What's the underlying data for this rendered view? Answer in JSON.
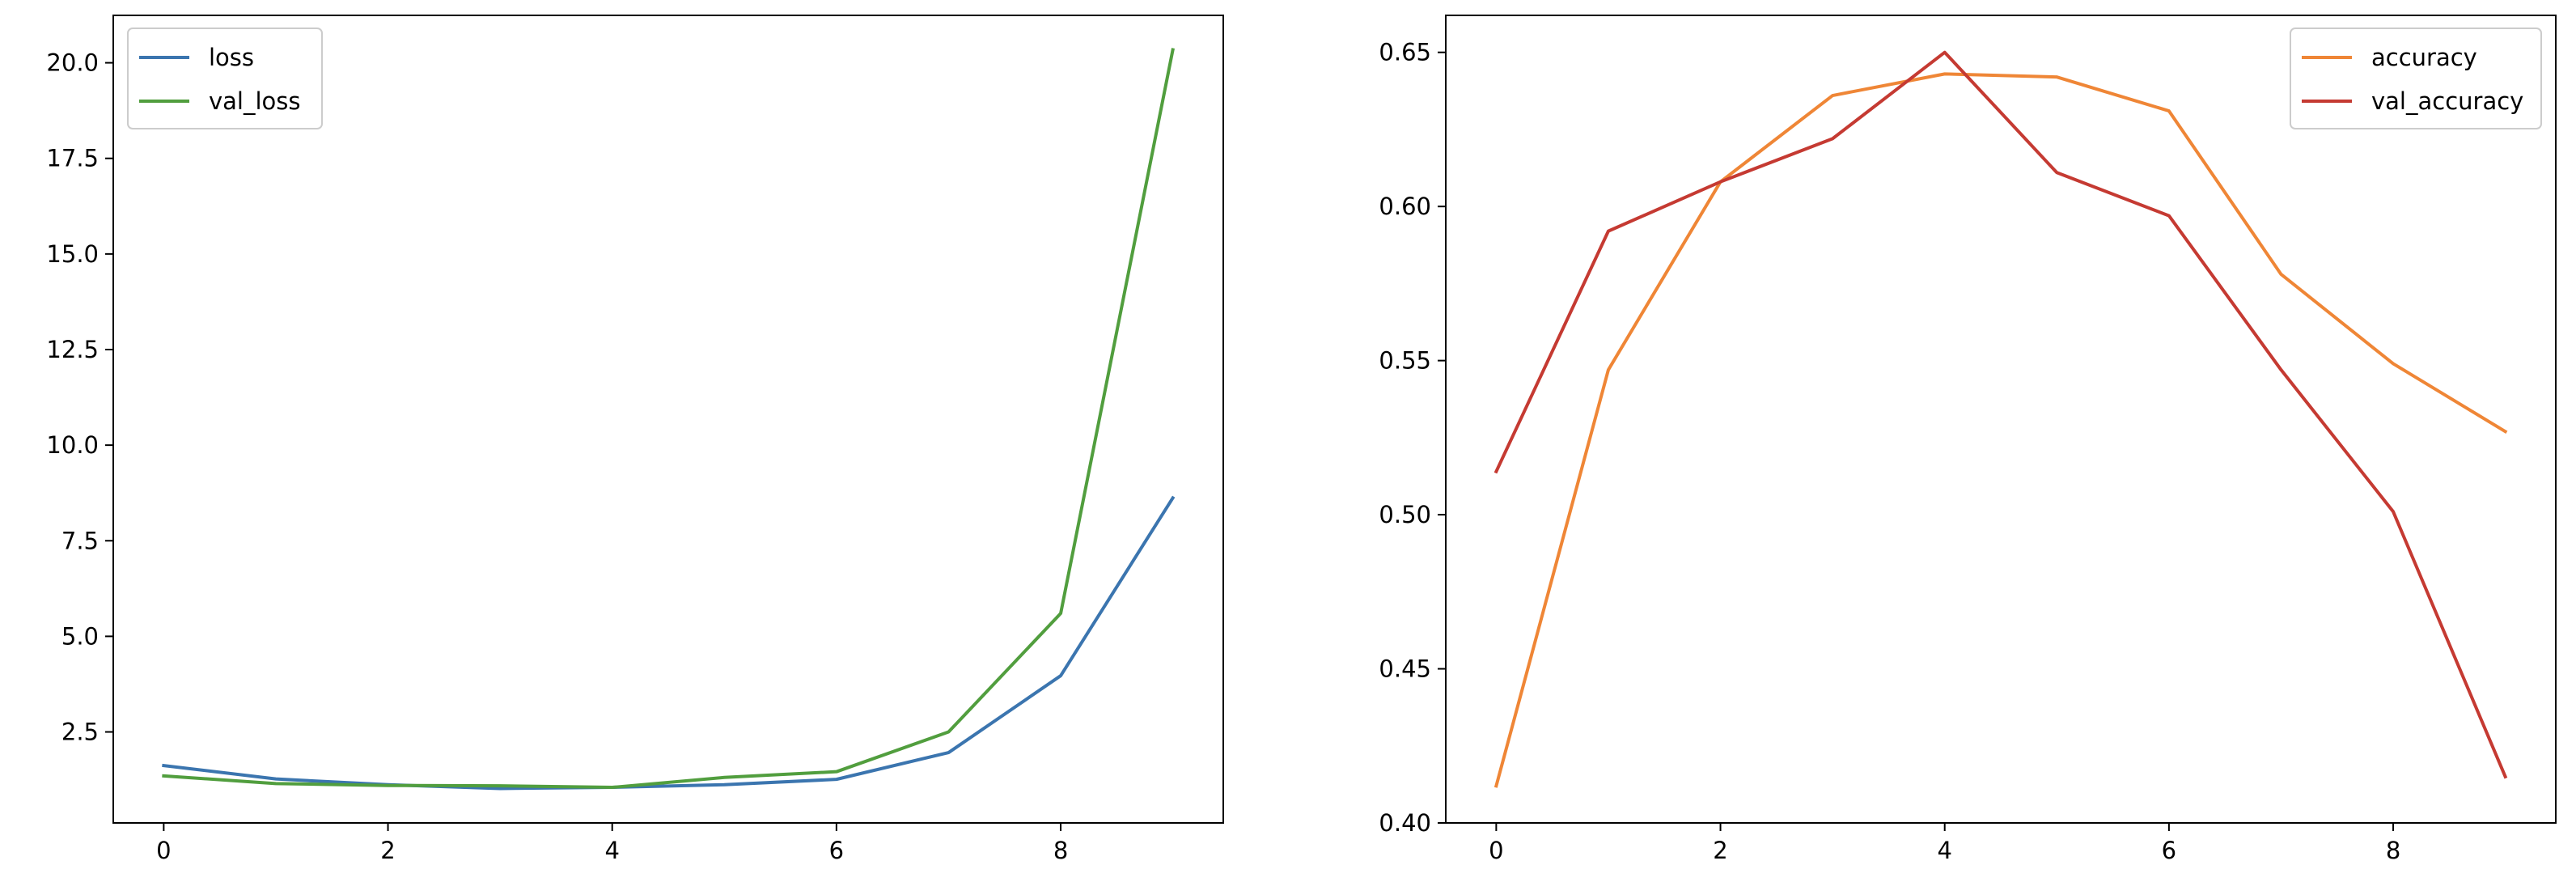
{
  "chart_data": [
    {
      "type": "line",
      "title": "",
      "xlabel": "",
      "ylabel": "",
      "x": [
        0,
        1,
        2,
        3,
        4,
        5,
        6,
        7,
        8,
        9
      ],
      "xlim": [
        -0.45,
        9.45
      ],
      "ylim": [
        0.12,
        21.24
      ],
      "xticks": [
        0,
        2,
        4,
        6,
        8
      ],
      "xtick_labels": [
        "0",
        "2",
        "4",
        "6",
        "8"
      ],
      "yticks": [
        2.5,
        5.0,
        7.5,
        10.0,
        12.5,
        15.0,
        17.5,
        20.0
      ],
      "ytick_labels": [
        "2.5",
        "5.0",
        "7.5",
        "10.0",
        "12.5",
        "15.0",
        "17.5",
        "20.0"
      ],
      "grid": false,
      "legend_position": "top-left",
      "series": [
        {
          "name": "loss",
          "color": "#3b75af",
          "values": [
            1.62,
            1.27,
            1.12,
            1.02,
            1.05,
            1.12,
            1.26,
            1.96,
            3.97,
            8.62
          ]
        },
        {
          "name": "val_loss",
          "color": "#519e3e",
          "values": [
            1.35,
            1.15,
            1.1,
            1.09,
            1.05,
            1.31,
            1.46,
            2.5,
            5.6,
            20.34
          ]
        }
      ]
    },
    {
      "type": "line",
      "title": "",
      "xlabel": "",
      "ylabel": "",
      "x": [
        0,
        1,
        2,
        3,
        4,
        5,
        6,
        7,
        8,
        9
      ],
      "xlim": [
        -0.45,
        9.45
      ],
      "ylim": [
        0.4,
        0.662
      ],
      "xticks": [
        0,
        2,
        4,
        6,
        8
      ],
      "xtick_labels": [
        "0",
        "2",
        "4",
        "6",
        "8"
      ],
      "yticks": [
        0.4,
        0.45,
        0.5,
        0.55,
        0.6,
        0.65
      ],
      "ytick_labels": [
        "0.40",
        "0.45",
        "0.50",
        "0.55",
        "0.60",
        "0.65"
      ],
      "grid": false,
      "legend_position": "top-right",
      "series": [
        {
          "name": "accuracy",
          "color": "#ef8636",
          "values": [
            0.412,
            0.547,
            0.608,
            0.636,
            0.643,
            0.642,
            0.631,
            0.578,
            0.549,
            0.527
          ]
        },
        {
          "name": "val_accuracy",
          "color": "#c53a32",
          "values": [
            0.514,
            0.592,
            0.608,
            0.622,
            0.65,
            0.611,
            0.597,
            0.547,
            0.501,
            0.415
          ]
        }
      ]
    }
  ]
}
